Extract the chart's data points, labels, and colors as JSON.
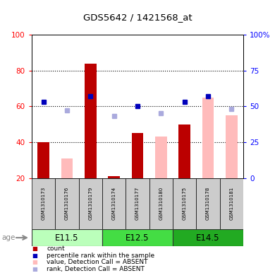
{
  "title": "GDS5642 / 1421568_at",
  "samples": [
    "GSM1310173",
    "GSM1310176",
    "GSM1310179",
    "GSM1310174",
    "GSM1310177",
    "GSM1310180",
    "GSM1310175",
    "GSM1310178",
    "GSM1310181"
  ],
  "red_bars": [
    40,
    0,
    84,
    21,
    45,
    0,
    50,
    0,
    0
  ],
  "pink_bars": [
    0,
    31,
    0,
    0,
    0,
    43,
    0,
    65,
    55
  ],
  "blue_squares_pct": [
    53,
    0,
    57,
    0,
    50,
    0,
    53,
    57,
    0
  ],
  "light_blue_squares_pct": [
    0,
    47,
    0,
    43,
    0,
    45,
    0,
    0,
    48
  ],
  "ylim_left": [
    20,
    100
  ],
  "ylim_right": [
    0,
    100
  ],
  "yticks_left": [
    20,
    40,
    60,
    80,
    100
  ],
  "ytick_labels_left": [
    "20",
    "40",
    "60",
    "80",
    "100"
  ],
  "ytick_labels_right": [
    "0",
    "25",
    "50",
    "75",
    "100%"
  ],
  "red_color": "#bb0000",
  "pink_color": "#ffbbbb",
  "blue_color": "#0000bb",
  "light_blue_color": "#aaaadd",
  "bar_width": 0.5,
  "group_boundaries": [
    [
      0,
      2,
      "E11.5",
      "#bbffbb"
    ],
    [
      3,
      5,
      "E12.5",
      "#44dd44"
    ],
    [
      6,
      8,
      "E14.5",
      "#22aa22"
    ]
  ],
  "age_label": "age",
  "legend_items": [
    {
      "label": "count",
      "color": "#bb0000"
    },
    {
      "label": "percentile rank within the sample",
      "color": "#0000bb"
    },
    {
      "label": "value, Detection Call = ABSENT",
      "color": "#ffbbbb"
    },
    {
      "label": "rank, Detection Call = ABSENT",
      "color": "#aaaadd"
    }
  ]
}
